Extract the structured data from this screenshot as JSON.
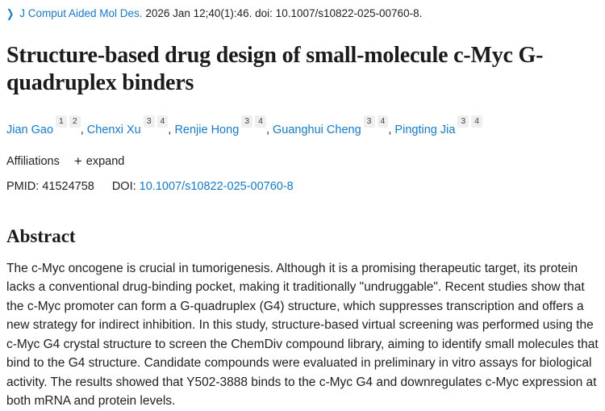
{
  "colors": {
    "link_blue": "#1779c4",
    "body_text": "#212121",
    "title_text": "#1b1b1b",
    "badge_background": "#efefef"
  },
  "citation": {
    "chevron_icon": "❯",
    "journal": "J Comput Aided Mol Des.",
    "rest": "2026 Jan 12;40(1):46. doi: 10.1007/s10822-025-00760-8."
  },
  "title": "Structure-based drug design of small-molecule c-Myc G-quadruplex binders",
  "authors": {
    "separator": ", ",
    "list": [
      {
        "name": "Jian Gao",
        "affs": [
          "1",
          "2"
        ]
      },
      {
        "name": "Chenxi Xu",
        "affs": [
          "3",
          "4"
        ]
      },
      {
        "name": "Renjie Hong",
        "affs": [
          "3",
          "4"
        ]
      },
      {
        "name": "Guanghui Cheng",
        "affs": [
          "3",
          "4"
        ]
      },
      {
        "name": "Pingting Jia",
        "affs": [
          "3",
          "4"
        ]
      }
    ]
  },
  "affiliations": {
    "label": "Affiliations",
    "expand_icon": "+",
    "expand_label": "expand"
  },
  "identifiers": {
    "pmid_label": "PMID:",
    "pmid_value": "41524758",
    "doi_label": "DOI:",
    "doi_value": "10.1007/s10822-025-00760-8"
  },
  "abstract": {
    "heading": "Abstract",
    "text": "The c-Myc oncogene is crucial in tumorigenesis. Although it is a promising therapeutic target, its protein lacks a conventional drug-binding pocket, making it traditionally \"undruggable\". Recent studies show that the c-Myc promoter can form a G-quadruplex (G4) structure, which suppresses transcription and offers a new strategy for indirect inhibition. In this study, structure-based virtual screening was performed using the c-Myc G4 crystal structure to screen the ChemDiv compound library, aiming to identify small molecules that bind to the G4 structure. Candidate compounds were evaluated in preliminary in vitro assays for biological activity. The results showed that Y502-3888 binds to the c-Myc G4 and downregulates c-Myc expression at both mRNA and protein levels."
  }
}
